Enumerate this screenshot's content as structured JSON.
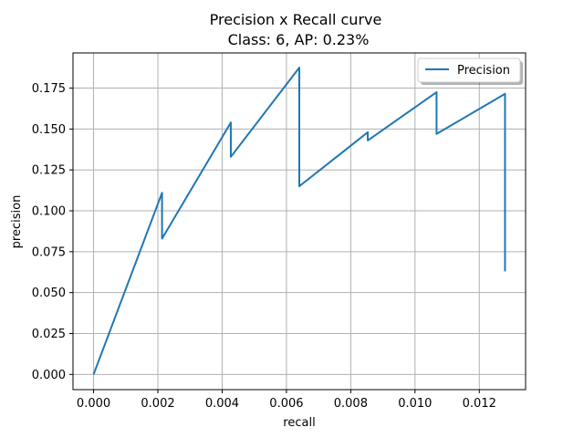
{
  "chart_data": {
    "type": "line",
    "title": "Precision x Recall curve",
    "subtitle": "Class: 6, AP: 0.23%",
    "xlabel": "recall",
    "ylabel": "precision",
    "xlim": [
      -0.00064,
      0.01344
    ],
    "ylim": [
      -0.0093,
      0.1965
    ],
    "xticks": [
      0.0,
      0.002,
      0.004,
      0.006,
      0.008,
      0.01,
      0.012
    ],
    "xtick_labels": [
      "0.000",
      "0.002",
      "0.004",
      "0.006",
      "0.008",
      "0.010",
      "0.012"
    ],
    "yticks": [
      0.0,
      0.025,
      0.05,
      0.075,
      0.1,
      0.125,
      0.15,
      0.175
    ],
    "ytick_labels": [
      "0.000",
      "0.025",
      "0.050",
      "0.075",
      "0.100",
      "0.125",
      "0.150",
      "0.175"
    ],
    "grid": true,
    "legend_position": "top-right",
    "series": [
      {
        "name": "Precision",
        "color": "#1f77b4",
        "x": [
          0.0,
          0.00213,
          0.00213,
          0.00427,
          0.00427,
          0.0064,
          0.0064,
          0.00853,
          0.00853,
          0.01067,
          0.01067,
          0.0128,
          0.0128
        ],
        "y": [
          0.0,
          0.111,
          0.083,
          0.154,
          0.133,
          0.1875,
          0.115,
          0.148,
          0.143,
          0.1725,
          0.147,
          0.1715,
          0.063
        ]
      }
    ]
  }
}
